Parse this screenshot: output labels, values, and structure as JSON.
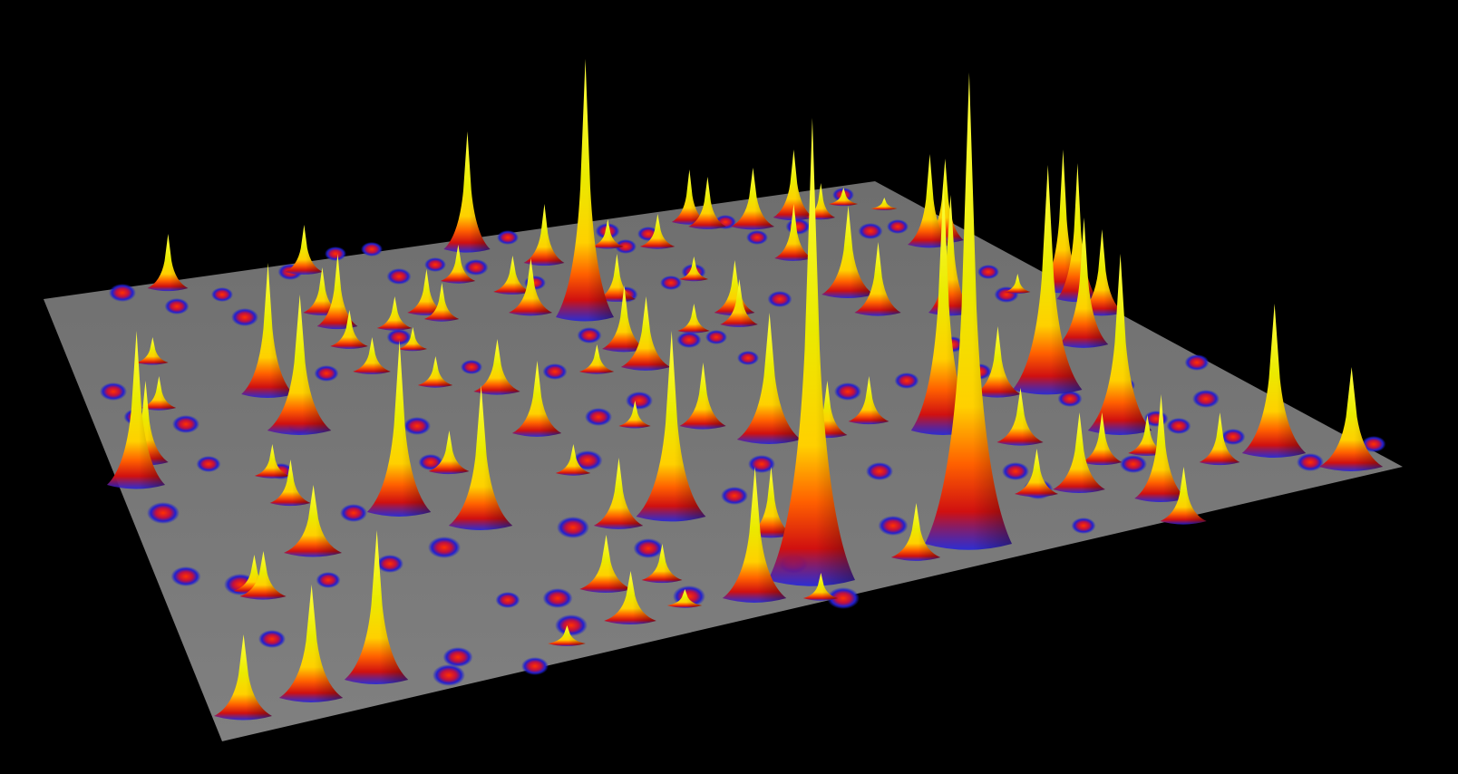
{
  "scene": {
    "subject": "3d-surface-peaks",
    "colors": {
      "background": "#000000",
      "surface": "#7a7a7a",
      "peak_top": "#e6e600",
      "peak_mid": "#ff2a00",
      "peak_base": "#1a1aff"
    }
  }
}
